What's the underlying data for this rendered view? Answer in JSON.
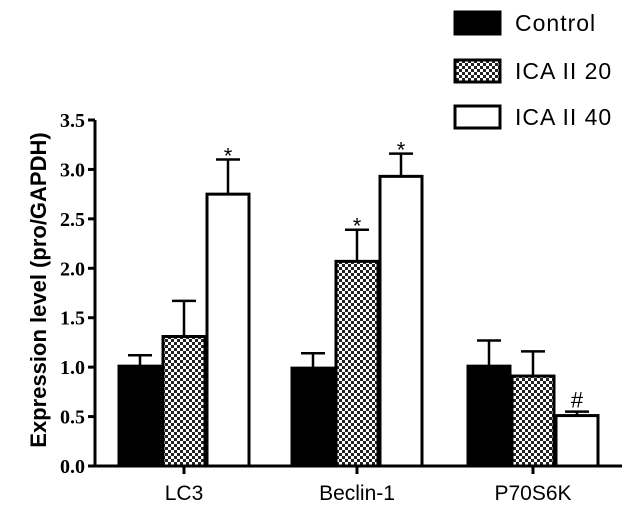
{
  "chart_data": {
    "type": "bar",
    "ylabel": "Expression level (pro/GAPDH)",
    "xlabel": "",
    "ylim": [
      0,
      3.5
    ],
    "yticks": [
      "0.0",
      "0.5",
      "1.0",
      "1.5",
      "2.0",
      "2.5",
      "3.0",
      "3.5"
    ],
    "categories": [
      "LC3",
      "Beclin-1",
      "P70S6K"
    ],
    "legend_position": "top-right",
    "series": [
      {
        "name": "Control",
        "fill": "solid-black",
        "values": [
          1.01,
          0.99,
          1.01
        ],
        "errors": [
          0.11,
          0.15,
          0.26
        ]
      },
      {
        "name": "ICA II 20",
        "fill": "checkered",
        "values": [
          1.31,
          2.07,
          0.91
        ],
        "errors": [
          0.36,
          0.32,
          0.25
        ]
      },
      {
        "name": "ICA II 40",
        "fill": "white",
        "values": [
          2.75,
          2.93,
          0.51
        ],
        "errors": [
          0.35,
          0.23,
          0.04
        ]
      }
    ],
    "annotations": [
      {
        "category": 0,
        "series": 2,
        "text": "*"
      },
      {
        "category": 1,
        "series": 1,
        "text": "*"
      },
      {
        "category": 1,
        "series": 2,
        "text": "*"
      },
      {
        "category": 2,
        "series": 2,
        "text": "#"
      }
    ]
  }
}
